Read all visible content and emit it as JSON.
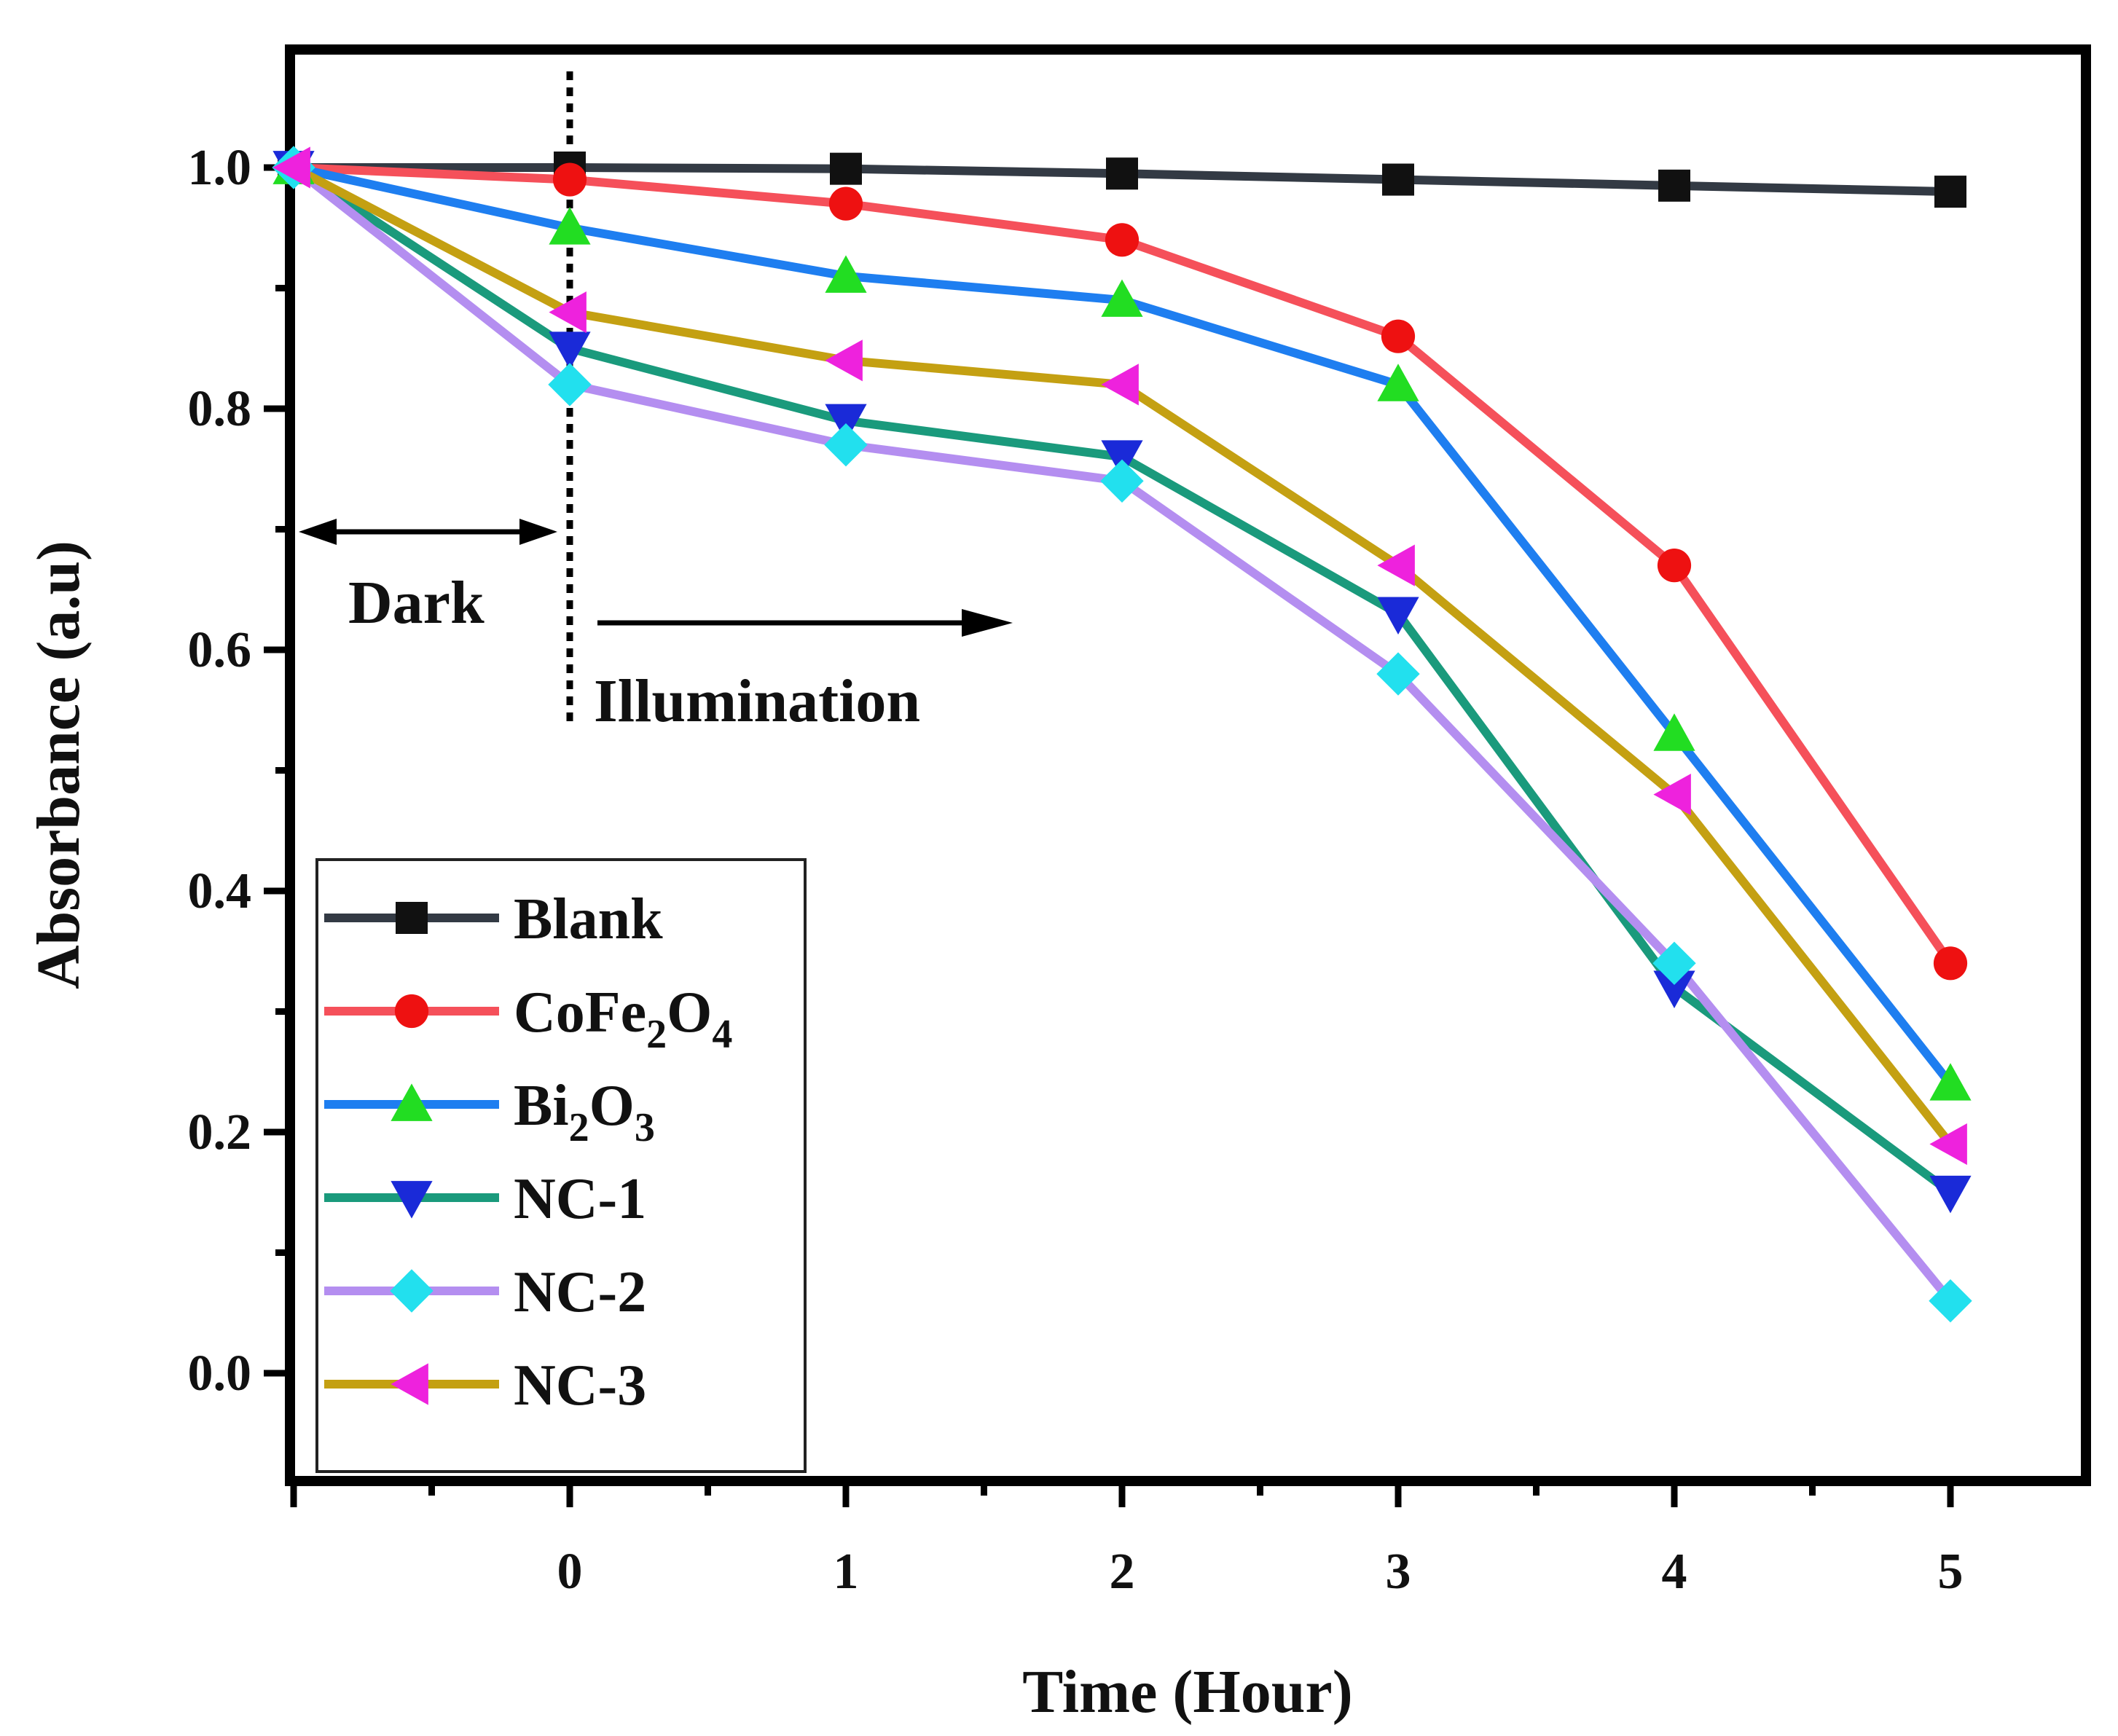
{
  "chart_data": {
    "type": "line",
    "title": "",
    "xlabel": "Time (Hour)",
    "ylabel": "Absorbance (a.u)",
    "xlim": [
      -1,
      5.5
    ],
    "ylim": [
      -0.1,
      1.1
    ],
    "x_ticks": [
      "0",
      "1",
      "2",
      "3",
      "4",
      "5"
    ],
    "y_ticks": [
      "0.0",
      "0.2",
      "0.4",
      "0.6",
      "0.8",
      "1.0"
    ],
    "x": [
      -1,
      0,
      1,
      2,
      3,
      4,
      5
    ],
    "grid": false,
    "legend_position": "bottom-left",
    "annotations": {
      "dark": "Dark",
      "illumination": "Illumination"
    },
    "series": [
      {
        "name": "Blank",
        "label_main": "Blank",
        "label_sub1": "",
        "label_mid": "",
        "label_sub2": "",
        "color": "#333a44",
        "marker": "square",
        "marker_color": "#111111",
        "values": [
          1.0,
          1.0,
          0.999,
          0.995,
          0.99,
          0.985,
          0.98
        ]
      },
      {
        "name": "CoFe2O4",
        "label_main": "CoFe",
        "label_sub1": "2",
        "label_mid": "O",
        "label_sub2": "4",
        "color": "#f5505a",
        "marker": "circle",
        "marker_color": "#ee1111",
        "values": [
          1.0,
          0.99,
          0.97,
          0.94,
          0.86,
          0.67,
          0.34
        ]
      },
      {
        "name": "Bi2O3",
        "label_main": "Bi",
        "label_sub1": "2",
        "label_mid": "O",
        "label_sub2": "3",
        "color": "#1e7ef0",
        "marker": "triangle-up",
        "marker_color": "#22dd22",
        "values": [
          1.0,
          0.95,
          0.91,
          0.89,
          0.82,
          0.53,
          0.24
        ]
      },
      {
        "name": "NC-1",
        "label_main": "NC-1",
        "label_sub1": "",
        "label_mid": "",
        "label_sub2": "",
        "color": "#1a9a7c",
        "marker": "triangle-down",
        "marker_color": "#1a2ad8",
        "values": [
          1.0,
          0.85,
          0.79,
          0.76,
          0.63,
          0.32,
          0.15
        ]
      },
      {
        "name": "NC-2",
        "label_main": "NC-2",
        "label_sub1": "",
        "label_mid": "",
        "label_sub2": "",
        "color": "#b48ef0",
        "marker": "diamond",
        "marker_color": "#22e0ee",
        "values": [
          1.0,
          0.82,
          0.77,
          0.74,
          0.58,
          0.34,
          0.06
        ]
      },
      {
        "name": "NC-3",
        "label_main": "NC-3",
        "label_sub1": "",
        "label_mid": "",
        "label_sub2": "",
        "color": "#c4a012",
        "marker": "triangle-left",
        "marker_color": "#ee22dd",
        "values": [
          1.0,
          0.88,
          0.84,
          0.82,
          0.67,
          0.48,
          0.19
        ]
      }
    ]
  }
}
